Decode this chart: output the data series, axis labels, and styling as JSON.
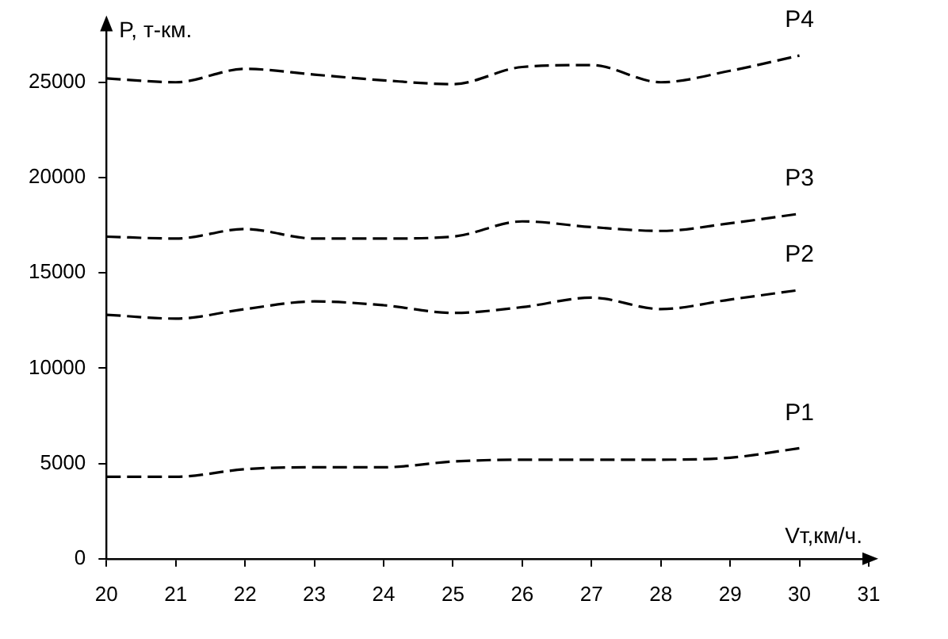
{
  "chart_data": {
    "type": "line",
    "xlabel": "Vт,км/ч.",
    "ylabel": "P, т-км.",
    "x": [
      20,
      21,
      22,
      23,
      24,
      25,
      26,
      27,
      28,
      29,
      30
    ],
    "series": [
      {
        "name": "P1",
        "color": "#000000",
        "values": [
          4300,
          4300,
          4700,
          4800,
          4800,
          5100,
          5200,
          5200,
          5200,
          5300,
          5800
        ]
      },
      {
        "name": "P2",
        "color": "#000000",
        "values": [
          12800,
          12600,
          13100,
          13500,
          13300,
          12900,
          13200,
          13700,
          13100,
          13600,
          14100
        ]
      },
      {
        "name": "P3",
        "color": "#000000",
        "values": [
          16900,
          16800,
          17300,
          16800,
          16800,
          16900,
          17700,
          17400,
          17200,
          17600,
          18100
        ]
      },
      {
        "name": "P4",
        "color": "#000000",
        "values": [
          25200,
          25000,
          25700,
          25400,
          25100,
          24900,
          25800,
          25900,
          25000,
          25600,
          26400
        ]
      }
    ],
    "xlim": [
      20,
      31
    ],
    "xticks": [
      20,
      21,
      22,
      23,
      24,
      25,
      26,
      27,
      28,
      29,
      30,
      31
    ],
    "ylim": [
      0,
      28000
    ],
    "yticks": [
      0,
      5000,
      10000,
      15000,
      20000,
      25000
    ],
    "grid": false,
    "legend": false,
    "marker": "none",
    "line_style": "dashed"
  }
}
